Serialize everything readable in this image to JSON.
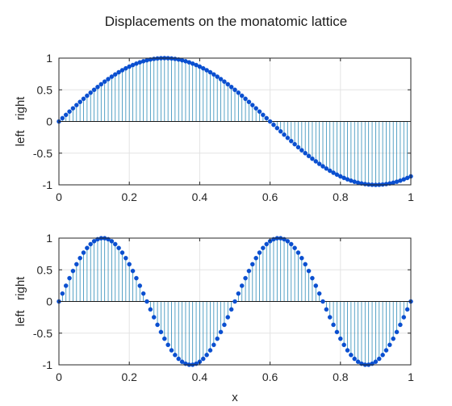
{
  "figure": {
    "title": "Displacements on the monatomic lattice"
  },
  "chart_data": [
    {
      "type": "stem",
      "title": "Displacements on the monatomic lattice",
      "xlabel": "",
      "ylabel": "left   right",
      "xlim": [
        0,
        1
      ],
      "ylim": [
        -1,
        1
      ],
      "xticks": [
        "0",
        "0.2",
        "0.4",
        "0.6",
        "0.8",
        "1"
      ],
      "yticks": [
        "1",
        "0.5",
        "0",
        "-0.5",
        "-1"
      ],
      "grid": true,
      "x_start": 0,
      "x_step": 0.01,
      "function": "sin(2*pi*0.833*x)",
      "values": [
        0.0,
        0.0523,
        0.1045,
        0.1564,
        0.2079,
        0.2588,
        0.309,
        0.3584,
        0.4067,
        0.454,
        0.5,
        0.5446,
        0.5878,
        0.6293,
        0.6691,
        0.7071,
        0.7431,
        0.7771,
        0.809,
        0.8387,
        0.866,
        0.891,
        0.9135,
        0.9336,
        0.9511,
        0.9659,
        0.9781,
        0.9877,
        0.9945,
        0.9986,
        1.0,
        0.9986,
        0.9945,
        0.9877,
        0.9781,
        0.9659,
        0.9511,
        0.9336,
        0.9135,
        0.891,
        0.866,
        0.8387,
        0.809,
        0.7771,
        0.7431,
        0.7071,
        0.6691,
        0.6293,
        0.5878,
        0.5446,
        0.5,
        0.454,
        0.4067,
        0.3584,
        0.309,
        0.2588,
        0.2079,
        0.1564,
        0.1045,
        0.0523,
        0.0,
        -0.0523,
        -0.1045,
        -0.1564,
        -0.2079,
        -0.2588,
        -0.309,
        -0.3584,
        -0.4067,
        -0.454,
        -0.5,
        -0.5446,
        -0.5878,
        -0.6293,
        -0.6691,
        -0.7071,
        -0.7431,
        -0.7771,
        -0.809,
        -0.8387,
        -0.866,
        -0.891,
        -0.9135,
        -0.9336,
        -0.9511,
        -0.9659,
        -0.9781,
        -0.9877,
        -0.9945,
        -0.9986,
        -1.0,
        -0.9986,
        -0.9945,
        -0.9877,
        -0.9781,
        -0.9659,
        -0.9511,
        -0.9336,
        -0.9135,
        -0.891,
        -0.866
      ],
      "colors": {
        "stem": "#2e8cb8",
        "marker": "#0a4fd0",
        "grid": "#e3e3e3",
        "axis": "#262626"
      }
    },
    {
      "type": "stem",
      "title": "",
      "xlabel": "x",
      "ylabel": "left   right",
      "xlim": [
        0,
        1
      ],
      "ylim": [
        -1,
        1
      ],
      "xticks": [
        "0",
        "0.2",
        "0.4",
        "0.6",
        "0.8",
        "1"
      ],
      "yticks": [
        "1",
        "0.5",
        "0",
        "-0.5",
        "-1"
      ],
      "grid": true,
      "x_start": 0,
      "x_step": 0.01,
      "function": "sin(2*pi*2*x)",
      "values": [
        0.0,
        0.1253,
        0.2487,
        0.3681,
        0.4818,
        0.5878,
        0.6845,
        0.7705,
        0.8443,
        0.9048,
        0.9511,
        0.9823,
        0.998,
        0.998,
        0.9823,
        0.9511,
        0.9048,
        0.8443,
        0.7705,
        0.6845,
        0.5878,
        0.4818,
        0.3681,
        0.2487,
        0.1253,
        0.0,
        -0.1253,
        -0.2487,
        -0.3681,
        -0.4818,
        -0.5878,
        -0.6845,
        -0.7705,
        -0.8443,
        -0.9048,
        -0.9511,
        -0.9823,
        -0.998,
        -0.998,
        -0.9823,
        -0.9511,
        -0.9048,
        -0.8443,
        -0.7705,
        -0.6845,
        -0.5878,
        -0.4818,
        -0.3681,
        -0.2487,
        -0.1253,
        0.0,
        0.1253,
        0.2487,
        0.3681,
        0.4818,
        0.5878,
        0.6845,
        0.7705,
        0.8443,
        0.9048,
        0.9511,
        0.9823,
        0.998,
        0.998,
        0.9823,
        0.9511,
        0.9048,
        0.8443,
        0.7705,
        0.6845,
        0.5878,
        0.4818,
        0.3681,
        0.2487,
        0.1253,
        0.0,
        -0.1253,
        -0.2487,
        -0.3681,
        -0.4818,
        -0.5878,
        -0.6845,
        -0.7705,
        -0.8443,
        -0.9048,
        -0.9511,
        -0.9823,
        -0.998,
        -0.998,
        -0.9823,
        -0.9511,
        -0.9048,
        -0.8443,
        -0.7705,
        -0.6845,
        -0.5878,
        -0.4818,
        -0.3681,
        -0.2487,
        -0.1253,
        0.0
      ],
      "colors": {
        "stem": "#2e8cb8",
        "marker": "#0a4fd0",
        "grid": "#e3e3e3",
        "axis": "#262626"
      }
    }
  ]
}
